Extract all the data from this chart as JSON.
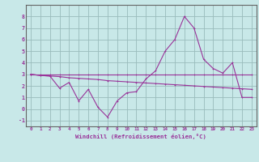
{
  "xlabel": "Windchill (Refroidissement éolien,°C)",
  "background_color": "#c8e8e8",
  "grid_color": "#99bbbb",
  "line_color": "#993399",
  "spine_color": "#666666",
  "xlim": [
    -0.5,
    23.5
  ],
  "ylim": [
    -1.5,
    9.0
  ],
  "yticks": [
    -1,
    0,
    1,
    2,
    3,
    4,
    5,
    6,
    7,
    8
  ],
  "xticks": [
    0,
    1,
    2,
    3,
    4,
    5,
    6,
    7,
    8,
    9,
    10,
    11,
    12,
    13,
    14,
    15,
    16,
    17,
    18,
    19,
    20,
    21,
    22,
    23
  ],
  "line1_y": [
    3,
    3,
    3,
    3,
    3,
    3,
    3,
    3,
    3,
    3,
    3,
    3,
    3,
    3,
    3,
    3,
    3,
    3,
    3,
    3,
    3,
    3,
    3,
    3
  ],
  "line2_y": [
    3.0,
    2.9,
    2.85,
    2.8,
    2.7,
    2.65,
    2.6,
    2.55,
    2.45,
    2.4,
    2.35,
    2.3,
    2.25,
    2.2,
    2.15,
    2.1,
    2.05,
    2.0,
    1.95,
    1.9,
    1.85,
    1.8,
    1.75,
    1.7
  ],
  "line3_y": [
    3.0,
    2.9,
    2.85,
    1.8,
    2.3,
    0.7,
    1.7,
    0.15,
    -0.7,
    0.7,
    1.4,
    1.5,
    2.6,
    3.3,
    5.0,
    6.0,
    8.0,
    7.0,
    4.3,
    3.5,
    3.1,
    4.0,
    1.0,
    1.0
  ]
}
